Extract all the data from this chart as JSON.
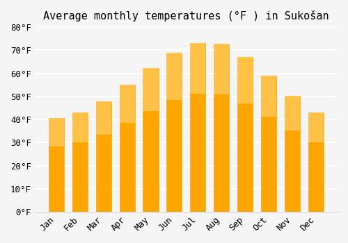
{
  "title": "Average monthly temperatures (°F ) in Sukošan",
  "months": [
    "Jan",
    "Feb",
    "Mar",
    "Apr",
    "May",
    "Jun",
    "Jul",
    "Aug",
    "Sep",
    "Oct",
    "Nov",
    "Dec"
  ],
  "values": [
    40.5,
    43.0,
    47.8,
    55.0,
    62.2,
    69.0,
    73.2,
    72.7,
    67.0,
    59.0,
    50.2,
    43.0
  ],
  "bar_color": "#FFA500",
  "bar_edge_color": "#FFB733",
  "bar_color_gradient_top": "#FFCF66",
  "ylim": [
    0,
    80
  ],
  "ytick_step": 10,
  "background_color": "#f5f5f5",
  "grid_color": "#ffffff",
  "title_fontsize": 11,
  "tick_fontsize": 9,
  "font_family": "monospace"
}
